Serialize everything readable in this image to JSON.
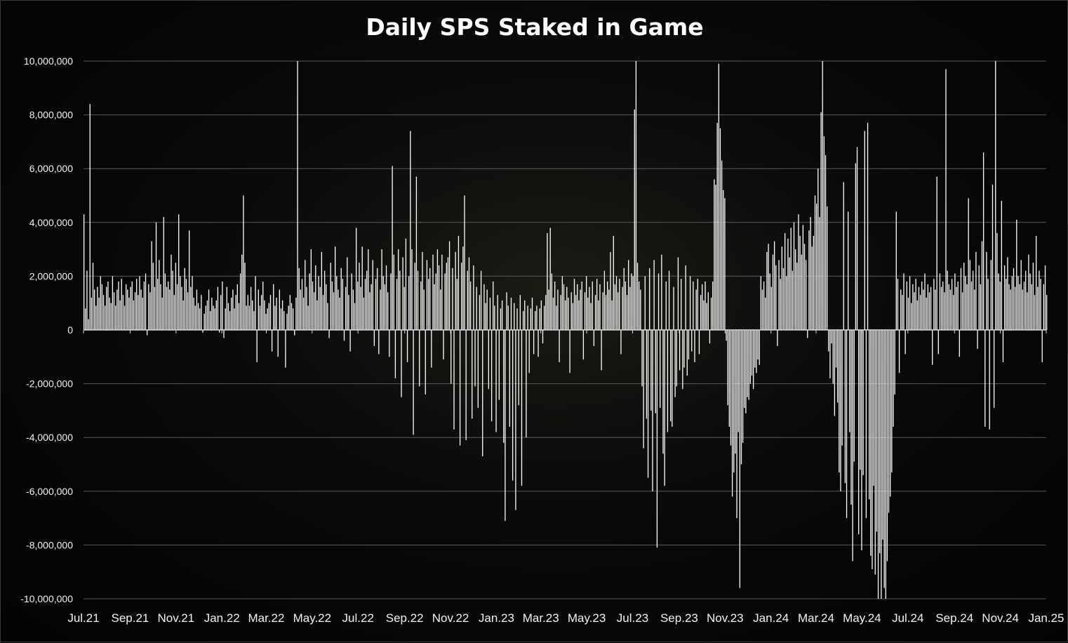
{
  "chart_data": {
    "type": "bar",
    "title": "Daily SPS Staked in Game",
    "xlabel": "",
    "ylabel": "",
    "ylim": [
      -10000000,
      10000000
    ],
    "y_ticks": [
      10000000,
      8000000,
      6000000,
      4000000,
      2000000,
      0,
      -2000000,
      -4000000,
      -6000000,
      -8000000,
      -10000000
    ],
    "y_tick_labels": [
      "10,000,000",
      "8,000,000",
      "6,000,000",
      "4,000,000",
      "2,000,000",
      "0",
      "-2,000,000",
      "-4,000,000",
      "-6,000,000",
      "-8,000,000",
      "-10,000,000"
    ],
    "x_range": [
      "2021-07-01",
      "2025-01-01"
    ],
    "x_tick_dates": [
      "2021-07-01",
      "2021-09-01",
      "2021-11-01",
      "2022-01-01",
      "2022-03-01",
      "2022-05-01",
      "2022-07-01",
      "2022-09-01",
      "2022-11-01",
      "2023-01-01",
      "2023-03-01",
      "2023-05-01",
      "2023-07-01",
      "2023-09-01",
      "2023-11-01",
      "2024-01-01",
      "2024-03-01",
      "2024-05-01",
      "2024-07-01",
      "2024-09-01",
      "2024-11-01",
      "2025-01-01"
    ],
    "x_tick_labels": [
      "Jul.21",
      "Sep.21",
      "Nov.21",
      "Jan.22",
      "Mar.22",
      "May.22",
      "Jul.22",
      "Sep.22",
      "Nov.22",
      "Jan.23",
      "Mar.23",
      "May.23",
      "Jul.23",
      "Sep.23",
      "Nov.23",
      "Jan.24",
      "Mar.24",
      "May.24",
      "Jul.24",
      "Sep.24",
      "Nov.24",
      "Jan.25"
    ],
    "grid": true,
    "legend": "none",
    "bar_color": "#ffffff",
    "series": [
      {
        "start_date": "2021-07-01",
        "values": [
          4300000,
          800000,
          2200000,
          400000,
          8400000,
          1200000,
          2500000,
          1500000,
          900000,
          1600000,
          1200000,
          2000000,
          1700000,
          1300000,
          900000,
          1600000,
          1800000,
          1200000,
          1000000,
          2000000,
          1400000,
          900000,
          1500000,
          1800000,
          1100000,
          1900000,
          1300000,
          900000,
          1700000,
          1500000,
          1200000,
          1600000,
          1800000,
          1100000,
          1400000,
          1900000,
          1300000,
          2000000,
          1500000,
          1200000,
          1800000,
          2100000,
          -200000,
          1700000,
          1400000,
          3300000,
          2500000,
          1600000,
          4000000,
          1900000,
          2600000,
          1700000,
          1200000,
          4200000,
          2100000,
          1600000,
          1800000,
          1500000,
          2800000,
          2200000,
          1300000,
          2500000,
          1700000,
          4300000,
          2000000,
          1600000,
          1100000,
          2300000,
          1900000,
          1400000,
          3700000,
          1600000,
          2000000,
          1200000,
          900000,
          1500000,
          1000000,
          800000,
          1300000,
          -100000,
          600000,
          900000,
          1100000,
          1500000,
          700000,
          1200000,
          900000,
          800000,
          1100000,
          1600000,
          -100000,
          1300000,
          1800000,
          -300000,
          800000,
          1600000,
          1000000,
          700000,
          1200000,
          1500000,
          800000,
          1300000,
          1700000,
          1000000,
          2100000,
          2800000,
          5000000,
          2500000,
          900000,
          1300000,
          900000,
          1600000,
          1100000,
          700000,
          2000000,
          -1200000,
          1500000,
          900000,
          1300000,
          1800000,
          1100000,
          600000,
          800000,
          1000000,
          1300000,
          -800000,
          1700000,
          900000,
          1200000,
          -1000000,
          1500000,
          800000,
          1100000,
          700000,
          -1400000,
          600000,
          900000,
          1300000,
          1000000,
          800000,
          -200000,
          1200000,
          10000000,
          2300000,
          1500000,
          1900000,
          1200000,
          2600000,
          1600000,
          900000,
          2100000,
          3000000,
          1800000,
          1400000,
          2400000,
          1100000,
          2000000,
          1600000,
          2900000,
          1300000,
          2200000,
          1700000,
          1000000,
          -300000,
          2500000,
          1800000,
          1400000,
          3100000,
          2000000,
          1500000,
          1200000,
          2300000,
          1900000,
          -400000,
          1600000,
          2700000,
          1300000,
          -800000,
          2100000,
          1500000,
          1000000,
          3800000,
          1800000,
          2500000,
          1600000,
          3100000,
          1200000,
          1900000,
          2200000,
          3000000,
          1400000,
          1700000,
          2600000,
          -600000,
          1900000,
          2300000,
          -900000,
          1500000,
          3000000,
          2000000,
          1700000,
          2400000,
          1400000,
          -1000000,
          2100000,
          6100000,
          2800000,
          -1800000,
          1900000,
          3000000,
          2200000,
          -2500000,
          2700000,
          1600000,
          3400000,
          -1200000,
          2000000,
          7400000,
          3000000,
          -3900000,
          2500000,
          5700000,
          2200000,
          -2100000,
          1800000,
          2900000,
          1500000,
          -2400000,
          2600000,
          1900000,
          2300000,
          -1400000,
          2800000,
          1700000,
          2100000,
          3000000,
          2400000,
          1500000,
          2800000,
          -1100000,
          2100000,
          2500000,
          2700000,
          3300000,
          -2000000,
          2300000,
          -3700000,
          2900000,
          1900000,
          3500000,
          -4300000,
          2500000,
          3100000,
          5000000,
          -4100000,
          2200000,
          2700000,
          1800000,
          -3300000,
          2400000,
          -2100000,
          1600000,
          -2900000,
          1300000,
          2200000,
          -4700000,
          1700000,
          1000000,
          1500000,
          -2200000,
          1200000,
          -3400000,
          1800000,
          900000,
          -3800000,
          1300000,
          -2600000,
          800000,
          1100000,
          -4200000,
          -7100000,
          1400000,
          900000,
          -3600000,
          1200000,
          -5600000,
          1000000,
          -6700000,
          800000,
          -2800000,
          1300000,
          -5800000,
          700000,
          1100000,
          -4000000,
          900000,
          -1600000,
          800000,
          1200000,
          -900000,
          700000,
          900000,
          -1000000,
          800000,
          1100000,
          -500000,
          900000,
          1300000,
          3600000,
          1500000,
          3800000,
          2100000,
          1200000,
          1800000,
          900000,
          1500000,
          -1200000,
          1300000,
          2000000,
          1700000,
          1100000,
          1600000,
          1200000,
          -1600000,
          1400000,
          1000000,
          1900000,
          1300000,
          1700000,
          1100000,
          1500000,
          1800000,
          -1100000,
          1400000,
          2000000,
          1200000,
          1600000,
          1000000,
          1800000,
          -600000,
          1300000,
          1900000,
          1100000,
          1700000,
          -1500000,
          1400000,
          2200000,
          1300000,
          1800000,
          1500000,
          2900000,
          1100000,
          3500000,
          1700000,
          2000000,
          1400000,
          1900000,
          -900000,
          1600000,
          2300000,
          1800000,
          1300000,
          2600000,
          1600000,
          2100000,
          2000000,
          8200000,
          10000000,
          2500000,
          1800000,
          1500000,
          -2100000,
          -4400000,
          2000000,
          -3300000,
          -5500000,
          2300000,
          -3000000,
          -6000000,
          2600000,
          -3100000,
          -8100000,
          2100000,
          -2900000,
          2800000,
          -4600000,
          -5800000,
          1800000,
          -3800000,
          2200000,
          -3400000,
          -3600000,
          1600000,
          -2500000,
          -2100000,
          2700000,
          -1500000,
          1900000,
          -2200000,
          -1400000,
          2400000,
          -1700000,
          -1100000,
          2000000,
          -800000,
          1800000,
          -1200000,
          1500000,
          1900000,
          -900000,
          1300000,
          1700000,
          1100000,
          1800000,
          1000000,
          1400000,
          -500000,
          1200000,
          1800000,
          5600000,
          5400000,
          7700000,
          9900000,
          7500000,
          6300000,
          5200000,
          4900000,
          -400000,
          -2800000,
          -3600000,
          -4300000,
          -6200000,
          -5300000,
          -4600000,
          -7000000,
          -3800000,
          -9600000,
          -5000000,
          -4200000,
          -2900000,
          -3100000,
          -2500000,
          -2600000,
          -2000000,
          -1700000,
          -2200000,
          -1400000,
          -1600000,
          -1100000,
          -1300000,
          2000000,
          1500000,
          1800000,
          1200000,
          2900000,
          3200000,
          2100000,
          1600000,
          2800000,
          3300000,
          2400000,
          -600000,
          2600000,
          1900000,
          3100000,
          2300000,
          3600000,
          2000000,
          3400000,
          2700000,
          3800000,
          2200000,
          4000000,
          3000000,
          2500000,
          4300000,
          3500000,
          2800000,
          3900000,
          3200000,
          2600000,
          -300000,
          3700000,
          4200000,
          3100000,
          3500000,
          5000000,
          4700000,
          6000000,
          4200000,
          8100000,
          10000000,
          7200000,
          6500000,
          4600000,
          -800000,
          -1800000,
          -500000,
          -2000000,
          -3200000,
          -1400000,
          -2700000,
          -5300000,
          -6000000,
          -4300000,
          5500000,
          -5700000,
          -7000000,
          4400000,
          -3800000,
          -6500000,
          -8600000,
          -4900000,
          6200000,
          6800000,
          -7600000,
          -5200000,
          -8200000,
          -5400000,
          7400000,
          -7000000,
          7700000,
          -6300000,
          -8400000,
          -8900000,
          -5800000,
          -9100000,
          -7500000,
          -10000000,
          -8300000,
          -10000000,
          -7800000,
          -9600000,
          -10000000,
          -8600000,
          -6800000,
          -6200000,
          -5300000,
          -3600000,
          -2400000,
          4400000,
          1900000,
          -1600000,
          1500000,
          1300000,
          2100000,
          -900000,
          1800000,
          1200000,
          2000000,
          1000000,
          1700000,
          1400000,
          1900000,
          1100000,
          1600000,
          1300000,
          1800000,
          1500000,
          2100000,
          1200000,
          1700000,
          1400000,
          1600000,
          -1300000,
          1900000,
          1500000,
          5700000,
          -900000,
          2100000,
          1600000,
          1800000,
          1400000,
          9700000,
          2200000,
          1700000,
          1500000,
          1900000,
          1300000,
          2100000,
          1600000,
          1800000,
          -1000000,
          2300000,
          1400000,
          2500000,
          2000000,
          1700000,
          4900000,
          2600000,
          1800000,
          2200000,
          1500000,
          2900000,
          -700000,
          2400000,
          1700000,
          3300000,
          6600000,
          -3600000,
          2900000,
          1900000,
          -3700000,
          2600000,
          5400000,
          -2900000,
          10000000,
          3600000,
          2100000,
          1800000,
          4800000,
          -1200000,
          2400000,
          1900000,
          2700000,
          1700000,
          1500000,
          2000000,
          2300000,
          1600000,
          4100000,
          2000000,
          1700000,
          2600000,
          1500000,
          1800000,
          2200000,
          1400000,
          2800000,
          2100000,
          1700000,
          2500000,
          1300000,
          3500000,
          1600000,
          2200000,
          1900000,
          -1200000,
          1700000,
          2400000,
          1300000,
          1800000,
          2000000,
          1500000,
          -900000,
          2800000,
          1600000,
          1200000,
          -1400000,
          2100000,
          1300000,
          1700000,
          1100000,
          -2000000,
          1500000,
          1200000,
          1800000,
          -2800000,
          1000000,
          1400000,
          -6100000,
          -3700000,
          1200000,
          -4800000,
          2700000,
          -3600000,
          1100000,
          900000,
          -4200000,
          1900000,
          -2100000,
          1400000,
          700000,
          -1100000,
          1200000,
          -1700000
        ]
      }
    ]
  }
}
